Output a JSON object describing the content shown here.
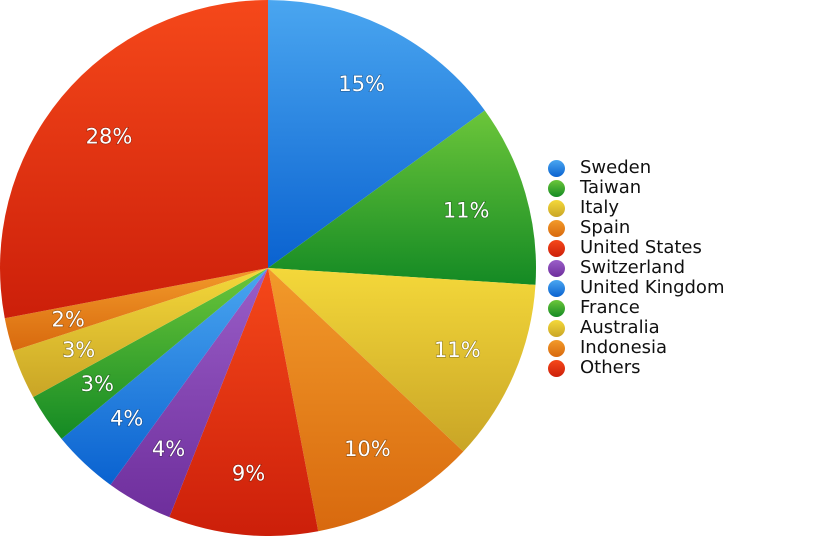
{
  "chart_data": {
    "type": "pie",
    "categories": [
      "Sweden",
      "Taiwan",
      "Italy",
      "Spain",
      "United States",
      "Switzerland",
      "United Kingdom",
      "France",
      "Australia",
      "Indonesia",
      "Others"
    ],
    "values": [
      15,
      11,
      11,
      10,
      9,
      4,
      4,
      3,
      3,
      2,
      28
    ],
    "labels": [
      "15%",
      "11%",
      "11%",
      "10%",
      "9%",
      "4%",
      "4%",
      "3%",
      "3%",
      "2%",
      "28%"
    ],
    "colors": [
      [
        "#4aa6f0",
        "#0a62d0"
      ],
      [
        "#6cc63a",
        "#148a24"
      ],
      [
        "#f4d83a",
        "#c9a526"
      ],
      [
        "#f29a2a",
        "#d8690e"
      ],
      [
        "#f5481a",
        "#cc1f0a"
      ],
      [
        "#9a5ec8",
        "#6e2e9c"
      ],
      [
        "#4aa6f0",
        "#0a62d0"
      ],
      [
        "#6cc63a",
        "#148a24"
      ],
      [
        "#f4d83a",
        "#c9a526"
      ],
      [
        "#f29a2a",
        "#d8690e"
      ],
      [
        "#f5481a",
        "#cc1f0a"
      ]
    ],
    "legend_colors": [
      "#2a8ae8",
      "#2ea436",
      "#e6c230",
      "#e8801e",
      "#e8380e",
      "#8446b4",
      "#2a8ae8",
      "#2ea436",
      "#e6c230",
      "#e8801e",
      "#e8380e"
    ],
    "legend": "right",
    "start": "top",
    "direction": "clockwise"
  }
}
